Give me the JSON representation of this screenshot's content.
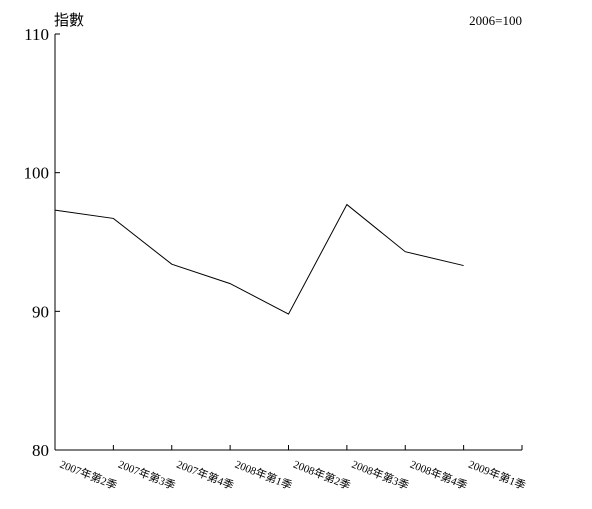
{
  "chart_data": {
    "type": "line",
    "ylabel": "指數",
    "base_note": "2006=100",
    "categories": [
      "2007年第2季",
      "2007年第3季",
      "2007年第4季",
      "2008年第1季",
      "2008年第2季",
      "2008年第3季",
      "2008年第4季",
      "2009年第1季"
    ],
    "series": [
      {
        "values": [
          97.3,
          96.7,
          93.4,
          92.0,
          89.8,
          97.7,
          94.3,
          93.3
        ]
      }
    ],
    "ylim": [
      80,
      110
    ],
    "yticks": [
      110,
      100,
      90,
      80
    ],
    "grid": false,
    "line_color": "#000000"
  }
}
